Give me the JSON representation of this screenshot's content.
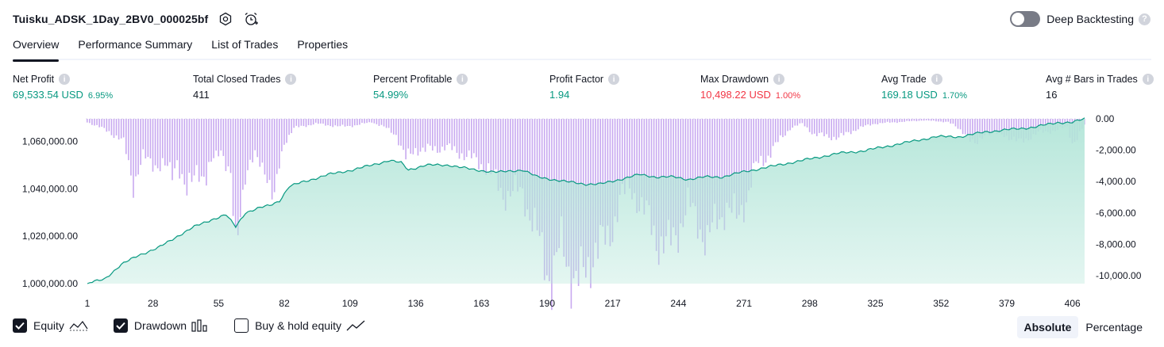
{
  "header": {
    "title": "Tuisku_ADSK_1Day_2BV0_000025bf",
    "settings_icon": "gear-icon",
    "alert_icon": "add-alert-icon"
  },
  "deep_backtesting": {
    "label": "Deep Backtesting",
    "enabled": false,
    "help_glyph": "?"
  },
  "tabs": [
    {
      "label": "Overview",
      "active": true
    },
    {
      "label": "Performance Summary",
      "active": false
    },
    {
      "label": "List of Trades",
      "active": false
    },
    {
      "label": "Properties",
      "active": false
    }
  ],
  "metrics": [
    {
      "label": "Net Profit",
      "value": "69,533.54 USD",
      "pct": "6.95%",
      "color": "green"
    },
    {
      "label": "Total Closed Trades",
      "value": "411",
      "pct": "",
      "color": "dark"
    },
    {
      "label": "Percent Profitable",
      "value": "54.99%",
      "pct": "",
      "color": "green"
    },
    {
      "label": "Profit Factor",
      "value": "1.94",
      "pct": "",
      "color": "green"
    },
    {
      "label": "Max Drawdown",
      "value": "10,498.22 USD",
      "pct": "1.00%",
      "color": "red"
    },
    {
      "label": "Avg Trade",
      "value": "169.18 USD",
      "pct": "1.70%",
      "color": "green"
    },
    {
      "label": "Avg # Bars in Trades",
      "value": "16",
      "pct": "",
      "color": "dark"
    }
  ],
  "info_glyph": "i",
  "colors": {
    "equity_line": "#089981",
    "equity_fill": "#b2e5d8",
    "drawdown": "#c8a9f0",
    "profit": "#089981",
    "loss": "#f23645"
  },
  "chart_data": {
    "type": "area",
    "x_ticks": [
      "1",
      "28",
      "55",
      "82",
      "109",
      "136",
      "163",
      "190",
      "217",
      "244",
      "271",
      "298",
      "325",
      "352",
      "379",
      "406"
    ],
    "equity_axis": {
      "ticks": [
        "1,060,000.00",
        "1,040,000.00",
        "1,020,000.00",
        "1,000,000.00"
      ],
      "ylim": [
        1000000,
        1069534
      ]
    },
    "drawdown_axis": {
      "ticks": [
        "0.00",
        "-2,000.00",
        "-4,000.00",
        "-6,000.00",
        "-8,000.00",
        "-10,000.00"
      ],
      "ylim": [
        -10500,
        0
      ]
    },
    "series": [
      {
        "name": "Equity",
        "keypoints": [
          [
            1,
            1000000
          ],
          [
            8,
            1002000
          ],
          [
            15,
            1008000
          ],
          [
            22,
            1012000
          ],
          [
            30,
            1015000
          ],
          [
            38,
            1020000
          ],
          [
            45,
            1024000
          ],
          [
            52,
            1027000
          ],
          [
            58,
            1029000
          ],
          [
            62,
            1024000
          ],
          [
            66,
            1030000
          ],
          [
            72,
            1032000
          ],
          [
            76,
            1033000
          ],
          [
            80,
            1035000
          ],
          [
            84,
            1041000
          ],
          [
            90,
            1043000
          ],
          [
            100,
            1046000
          ],
          [
            110,
            1048000
          ],
          [
            118,
            1050000
          ],
          [
            125,
            1052000
          ],
          [
            130,
            1051000
          ],
          [
            133,
            1048000
          ],
          [
            140,
            1050000
          ],
          [
            150,
            1050000
          ],
          [
            160,
            1048000
          ],
          [
            170,
            1047000
          ],
          [
            180,
            1048000
          ],
          [
            186,
            1045000
          ],
          [
            192,
            1044000
          ],
          [
            198,
            1043000
          ],
          [
            206,
            1042000
          ],
          [
            212,
            1042000
          ],
          [
            220,
            1044000
          ],
          [
            228,
            1046000
          ],
          [
            235,
            1045000
          ],
          [
            242,
            1045000
          ],
          [
            248,
            1044000
          ],
          [
            255,
            1045000
          ],
          [
            262,
            1045000
          ],
          [
            270,
            1047000
          ],
          [
            280,
            1049000
          ],
          [
            290,
            1051000
          ],
          [
            300,
            1053000
          ],
          [
            310,
            1055000
          ],
          [
            320,
            1056000
          ],
          [
            330,
            1058000
          ],
          [
            340,
            1060000
          ],
          [
            350,
            1062000
          ],
          [
            360,
            1062000
          ],
          [
            370,
            1064000
          ],
          [
            380,
            1065000
          ],
          [
            390,
            1066000
          ],
          [
            400,
            1068000
          ],
          [
            406,
            1068000
          ],
          [
            411,
            1069534
          ]
        ]
      },
      {
        "name": "Drawdown",
        "keypoints": [
          [
            1,
            -200
          ],
          [
            10,
            -800
          ],
          [
            16,
            -1500
          ],
          [
            20,
            -4100
          ],
          [
            24,
            -2500
          ],
          [
            28,
            -2800
          ],
          [
            32,
            -3000
          ],
          [
            36,
            -3500
          ],
          [
            38,
            -2500
          ],
          [
            42,
            -5000
          ],
          [
            46,
            -3000
          ],
          [
            50,
            -4000
          ],
          [
            53,
            -2500
          ],
          [
            56,
            -1800
          ],
          [
            60,
            -4000
          ],
          [
            62,
            -8500
          ],
          [
            64,
            -5500
          ],
          [
            66,
            -3500
          ],
          [
            70,
            -2500
          ],
          [
            74,
            -3000
          ],
          [
            78,
            -5500
          ],
          [
            80,
            -3000
          ],
          [
            82,
            -1500
          ],
          [
            86,
            -600
          ],
          [
            95,
            -300
          ],
          [
            105,
            -500
          ],
          [
            112,
            -400
          ],
          [
            118,
            -200
          ],
          [
            124,
            -600
          ],
          [
            128,
            -1000
          ],
          [
            132,
            -2600
          ],
          [
            136,
            -1900
          ],
          [
            140,
            -2000
          ],
          [
            148,
            -1800
          ],
          [
            155,
            -2200
          ],
          [
            160,
            -2600
          ],
          [
            166,
            -3200
          ],
          [
            172,
            -4800
          ],
          [
            180,
            -4600
          ],
          [
            188,
            -8500
          ],
          [
            192,
            -10200
          ],
          [
            196,
            -8000
          ],
          [
            200,
            -9800
          ],
          [
            204,
            -10498
          ],
          [
            207,
            -9500
          ],
          [
            210,
            -8000
          ],
          [
            215,
            -8000
          ],
          [
            220,
            -5000
          ],
          [
            225,
            -4500
          ],
          [
            232,
            -6500
          ],
          [
            236,
            -7800
          ],
          [
            240,
            -8200
          ],
          [
            244,
            -7000
          ],
          [
            248,
            -5500
          ],
          [
            252,
            -6500
          ],
          [
            256,
            -7800
          ],
          [
            260,
            -6500
          ],
          [
            264,
            -5500
          ],
          [
            268,
            -6500
          ],
          [
            272,
            -5000
          ],
          [
            276,
            -3000
          ],
          [
            280,
            -2500
          ],
          [
            285,
            -1500
          ],
          [
            290,
            -600
          ],
          [
            295,
            -300
          ],
          [
            300,
            -1000
          ],
          [
            310,
            -1200
          ],
          [
            318,
            -600
          ],
          [
            325,
            -300
          ],
          [
            335,
            -200
          ],
          [
            345,
            -100
          ],
          [
            355,
            -200
          ],
          [
            362,
            -900
          ],
          [
            366,
            -1800
          ],
          [
            370,
            -900
          ],
          [
            378,
            -1000
          ],
          [
            384,
            -1500
          ],
          [
            388,
            -1200
          ],
          [
            392,
            -900
          ],
          [
            396,
            -800
          ],
          [
            400,
            -700
          ],
          [
            404,
            -500
          ],
          [
            406,
            -1500
          ],
          [
            408,
            -1200
          ],
          [
            411,
            -400
          ]
        ]
      }
    ]
  },
  "legend": [
    {
      "label": "Equity",
      "checked": true,
      "icon": "equity-line-icon"
    },
    {
      "label": "Drawdown",
      "checked": true,
      "icon": "drawdown-bars-icon"
    },
    {
      "label": "Buy & hold equity",
      "checked": false,
      "icon": "buy-hold-line-icon"
    }
  ],
  "view_toggle": {
    "absolute": "Absolute",
    "percentage": "Percentage",
    "selected": "Absolute"
  }
}
